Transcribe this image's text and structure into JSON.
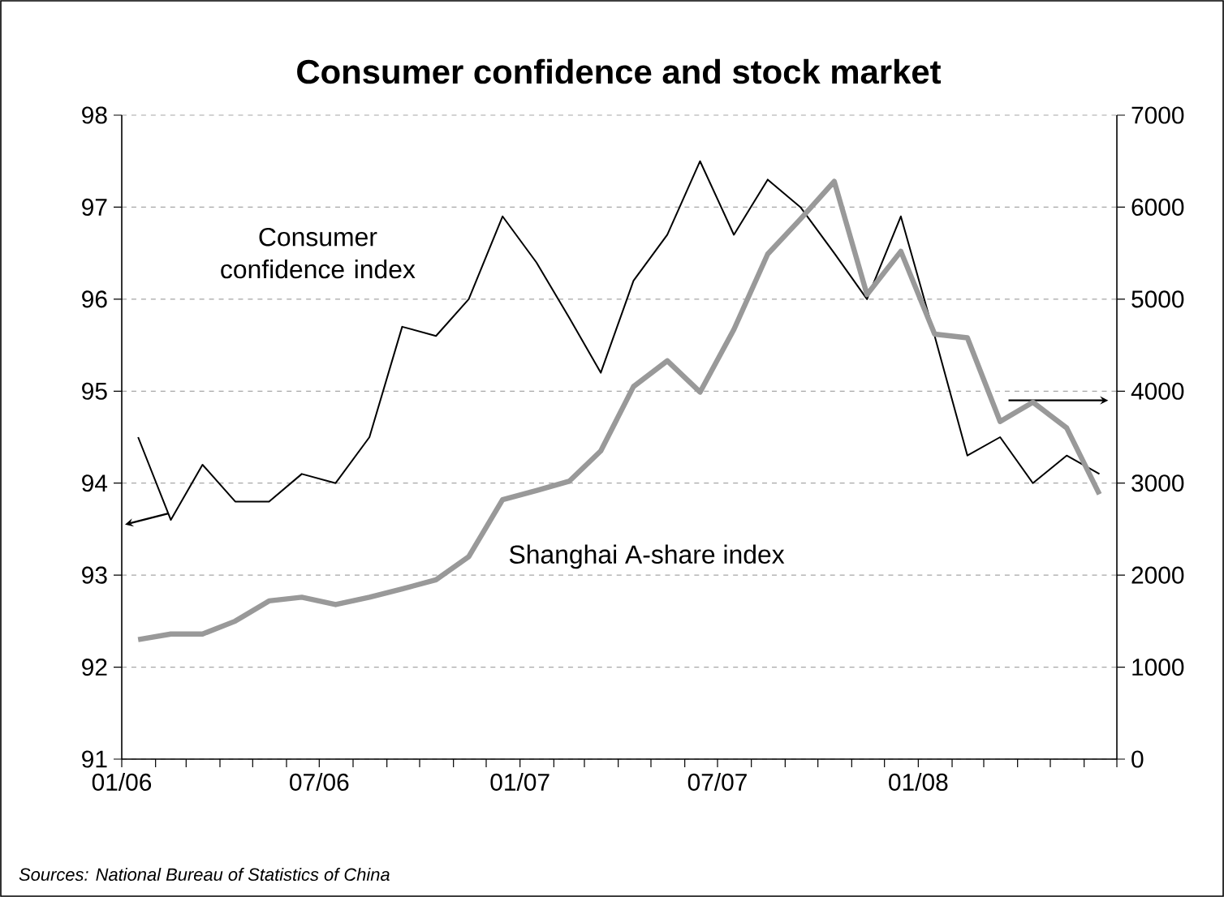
{
  "chart_data": {
    "type": "line",
    "title": "Consumer confidence and stock market",
    "x": [
      "2006-01-16",
      "2006-02-15",
      "2006-03-16",
      "2006-04-15",
      "2006-05-16",
      "2006-06-15",
      "2006-07-16",
      "2006-08-16",
      "2006-09-15",
      "2006-10-16",
      "2006-11-15",
      "2006-12-16",
      "2007-01-16",
      "2007-02-15",
      "2007-03-16",
      "2007-04-15",
      "2007-05-16",
      "2007-06-15",
      "2007-07-16",
      "2007-08-16",
      "2007-09-15",
      "2007-10-16",
      "2007-11-15",
      "2007-12-16",
      "2008-01-16",
      "2008-02-15",
      "2008-03-16",
      "2008-04-15",
      "2008-05-16",
      "2008-06-15"
    ],
    "xlim": [
      "2006-01-01",
      "2008-07-01"
    ],
    "xticks": [
      {
        "value": "2006-01",
        "label": "01/06"
      },
      {
        "value": "2006-02",
        "label": null
      },
      {
        "value": "2006-03",
        "label": null
      },
      {
        "value": "2006-04",
        "label": null
      },
      {
        "value": "2006-05",
        "label": null
      },
      {
        "value": "2006-06",
        "label": null
      },
      {
        "value": "2006-07",
        "label": "07/06"
      },
      {
        "value": "2006-08",
        "label": null
      },
      {
        "value": "2006-09",
        "label": null
      },
      {
        "value": "2006-10",
        "label": null
      },
      {
        "value": "2006-11",
        "label": null
      },
      {
        "value": "2006-12",
        "label": null
      },
      {
        "value": "2007-01",
        "label": "01/07"
      },
      {
        "value": "2007-02",
        "label": null
      },
      {
        "value": "2007-03",
        "label": null
      },
      {
        "value": "2007-04",
        "label": null
      },
      {
        "value": "2007-05",
        "label": null
      },
      {
        "value": "2007-06",
        "label": null
      },
      {
        "value": "2007-07",
        "label": "07/07"
      },
      {
        "value": "2007-08",
        "label": null
      },
      {
        "value": "2007-09",
        "label": null
      },
      {
        "value": "2007-10",
        "label": null
      },
      {
        "value": "2007-11",
        "label": null
      },
      {
        "value": "2007-12",
        "label": null
      },
      {
        "value": "2008-01",
        "label": "01/08"
      },
      {
        "value": "2008-02",
        "label": null
      },
      {
        "value": "2008-03",
        "label": null
      },
      {
        "value": "2008-04",
        "label": null
      },
      {
        "value": "2008-05",
        "label": null
      },
      {
        "value": "2008-06",
        "label": null
      },
      {
        "value": "2008-07",
        "label": null
      }
    ],
    "ylim": [
      91,
      98
    ],
    "yticks": [
      91,
      92,
      93,
      94,
      95,
      96,
      97,
      98
    ],
    "y2lim": [
      0,
      7000
    ],
    "y2ticks": [
      0,
      1000,
      2000,
      3000,
      4000,
      5000,
      6000,
      7000
    ],
    "grid": "y",
    "marker": "none",
    "series": [
      {
        "name": "Consumer confidence index",
        "color": "#000000",
        "values": [
          94.5,
          93.6,
          94.2,
          93.8,
          93.8,
          94.1,
          94.0,
          94.5,
          95.7,
          95.6,
          96.0,
          96.9,
          96.4,
          95.8,
          95.2,
          96.2,
          96.7,
          97.5,
          96.7,
          97.3,
          97.0,
          96.5,
          96.0,
          96.9,
          95.6,
          94.3,
          94.5,
          94.0,
          94.3,
          94.1
        ]
      },
      {
        "name": "Shanghai A-share index",
        "color": "#999999",
        "axis": "y2",
        "values": [
          1300,
          1360,
          1360,
          1500,
          1720,
          1760,
          1680,
          1760,
          1850,
          1950,
          2200,
          2820,
          2920,
          3020,
          3350,
          4050,
          4330,
          3990,
          4670,
          5490,
          5870,
          6280,
          5050,
          5520,
          4620,
          4580,
          3670,
          3880,
          3600,
          2880
        ]
      }
    ],
    "annotations": [
      "Sources: National Bureau of Statistics of China"
    ]
  }
}
